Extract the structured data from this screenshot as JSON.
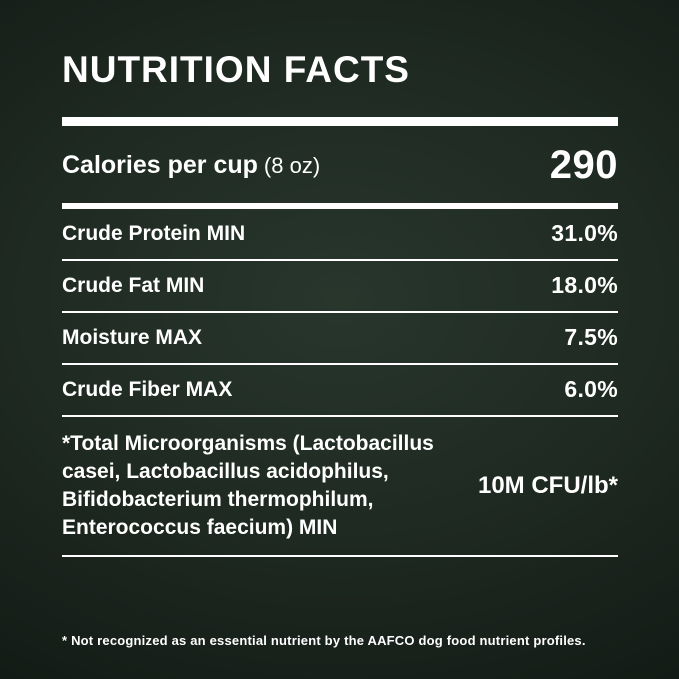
{
  "panel": {
    "title": "NUTRITION FACTS"
  },
  "calories": {
    "label": "Calories per cup",
    "unit": "(8 oz)",
    "value": "290"
  },
  "nutrients": [
    {
      "label": "Crude Protein MIN",
      "value": "31.0%"
    },
    {
      "label": "Crude Fat MIN",
      "value": "18.0%"
    },
    {
      "label": "Moisture MAX",
      "value": "7.5%"
    },
    {
      "label": "Crude Fiber MAX",
      "value": "6.0%"
    }
  ],
  "microorganisms": {
    "label": "*Total Microorganisms (Lactobacillus casei, Lactobacillus acidophilus, Bifidobacterium thermophilum, Enterococcus faecium) MIN",
    "value": "10M CFU/lb*"
  },
  "footnote": "* Not recognized as an essential nutrient by the AAFCO dog food nutrient profiles.",
  "colors": {
    "background_center": "#28362d",
    "background_edge": "#090d0a",
    "text": "#ffffff"
  }
}
